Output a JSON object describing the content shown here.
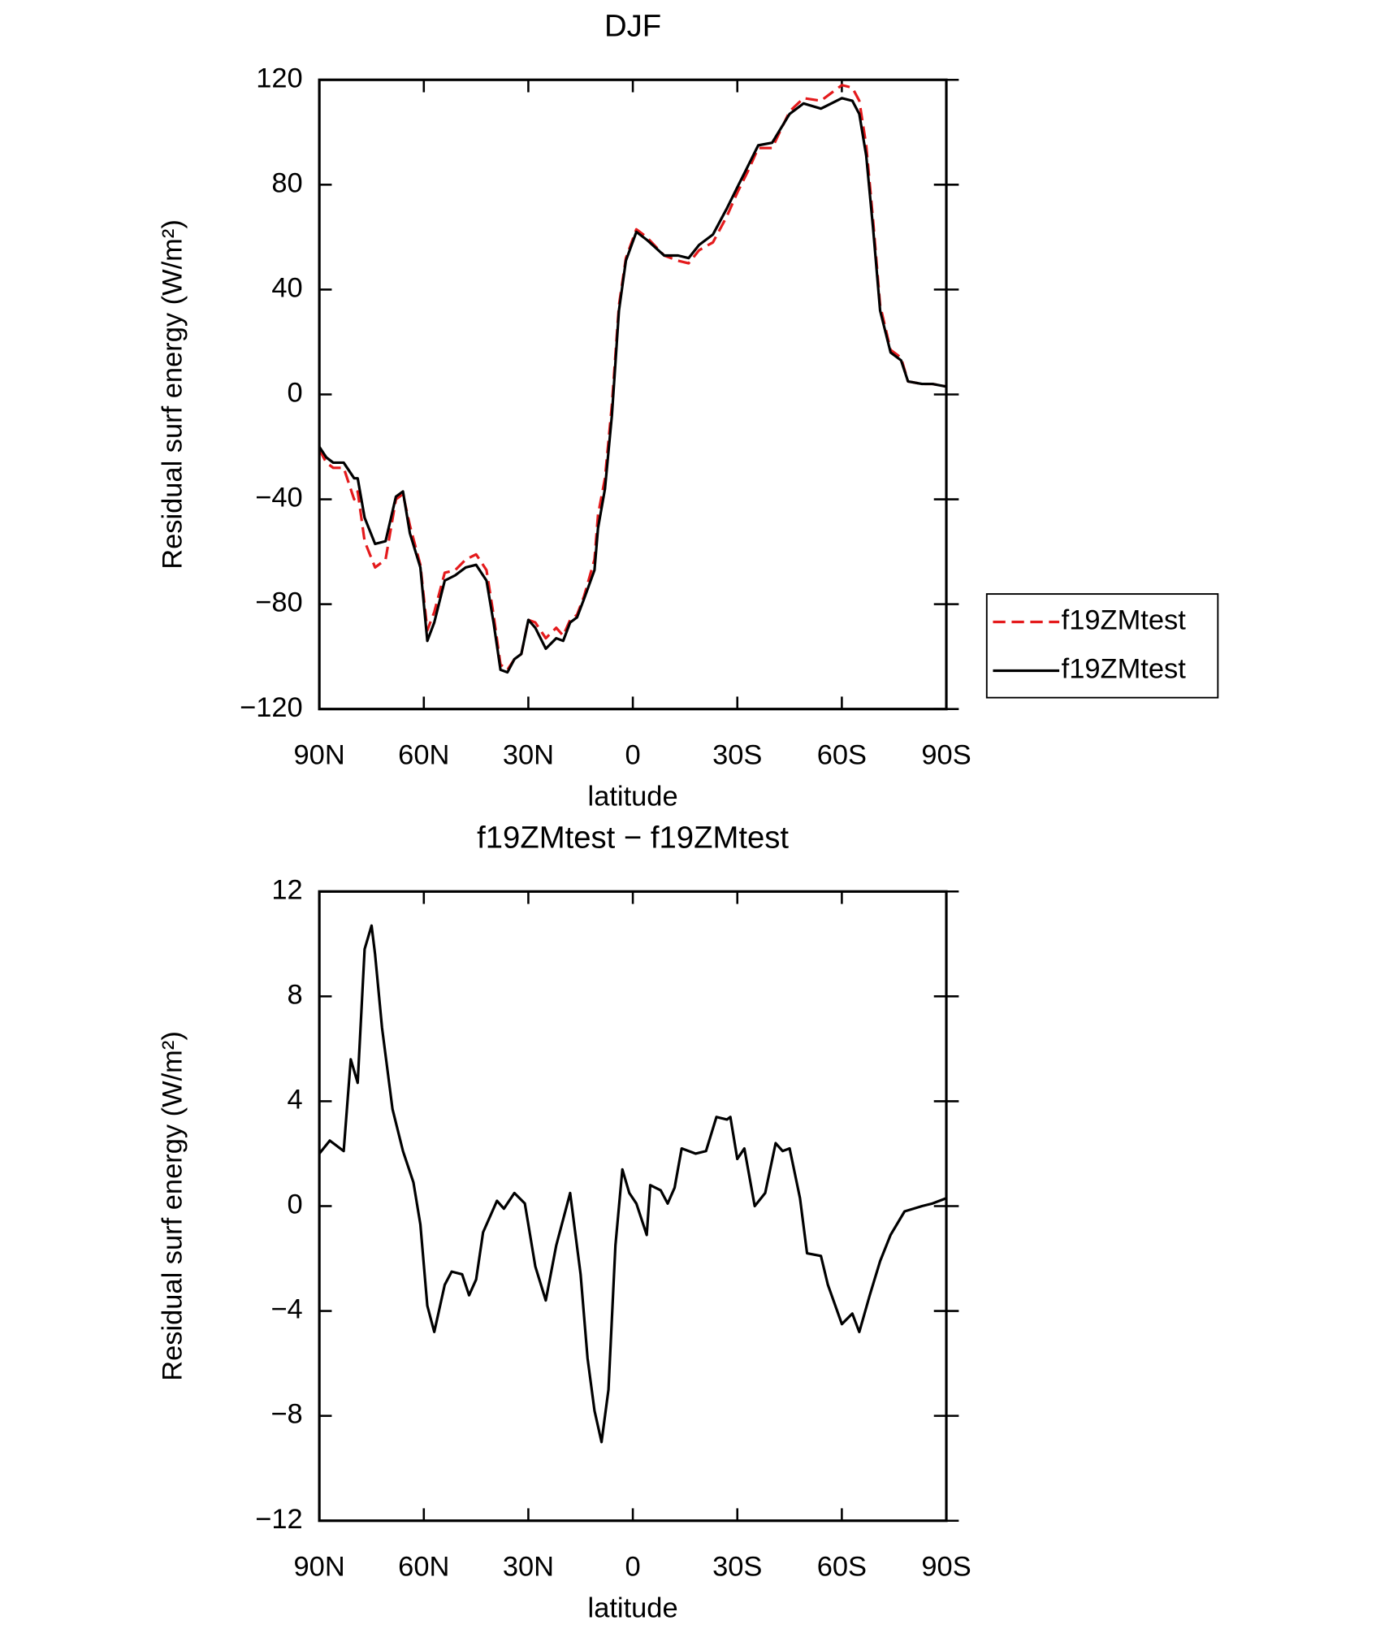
{
  "chart_data": [
    {
      "type": "line",
      "title": "DJF",
      "x_label": "latitude",
      "y_label": "Residual surf energy (W/m²)",
      "x": [
        90,
        88,
        86,
        83,
        80,
        79,
        77,
        74,
        71,
        68,
        66,
        64,
        61,
        59,
        57,
        54,
        51,
        48,
        45,
        42,
        40,
        38,
        36,
        34,
        32,
        30,
        28,
        25,
        22,
        20,
        18,
        16,
        14,
        11,
        10,
        8,
        6,
        4,
        2,
        -1,
        -4,
        -9,
        -13,
        -16,
        -19,
        -23,
        -27,
        -30,
        -33,
        -36,
        -40,
        -45,
        -49,
        -54,
        -60,
        -63,
        -65,
        -67,
        -69,
        -71,
        -74,
        -77,
        -79,
        -83,
        -86,
        -90
      ],
      "series": [
        {
          "name": "f19ZMtest",
          "color": "#e41a1c",
          "dash": true,
          "values": [
            -21,
            -26,
            -28,
            -28,
            -40,
            -37,
            -56,
            -66,
            -63,
            -40,
            -38,
            -50,
            -65,
            -90,
            -83,
            -68,
            -67,
            -63,
            -61,
            -67,
            -84,
            -103,
            -105,
            -101,
            -99,
            -86,
            -87,
            -93,
            -89,
            -92,
            -86,
            -84,
            -77,
            -63,
            -46,
            -32,
            -4,
            34,
            52,
            63,
            60,
            53,
            51,
            50,
            55,
            58,
            68,
            77,
            85,
            94,
            94,
            108,
            113,
            112,
            118,
            117,
            112,
            95,
            66,
            34,
            17,
            14,
            5,
            4,
            4,
            3
          ]
        },
        {
          "name": "f19ZMtest",
          "color": "#000000",
          "dash": false,
          "values": [
            -20,
            -24,
            -26,
            -26,
            -32,
            -32,
            -47,
            -57,
            -56,
            -39,
            -37,
            -53,
            -66,
            -94,
            -87,
            -71,
            -69,
            -66,
            -65,
            -71,
            -87,
            -105,
            -106,
            -101,
            -99,
            -86,
            -89,
            -97,
            -93,
            -94,
            -87,
            -85,
            -78,
            -67,
            -51,
            -36,
            -8,
            32,
            51,
            62,
            59,
            53,
            53,
            52,
            57,
            61,
            71,
            79,
            87,
            95,
            96,
            107,
            111,
            109,
            113,
            112,
            107,
            91,
            63,
            32,
            16,
            13,
            5,
            4,
            4,
            3
          ]
        }
      ],
      "xlim": [
        90,
        -90
      ],
      "ylim": [
        -120,
        120
      ],
      "xticks": [
        {
          "value": 90,
          "label": "90N"
        },
        {
          "value": 60,
          "label": "60N"
        },
        {
          "value": 30,
          "label": "30N"
        },
        0,
        {
          "value": -30,
          "label": "30S"
        },
        {
          "value": -60,
          "label": "60S"
        },
        {
          "value": -90,
          "label": "90S"
        }
      ],
      "yticks": [
        {
          "value": -120,
          "label": "−120"
        },
        {
          "value": -80,
          "label": "−80"
        },
        {
          "value": -40,
          "label": "−40"
        },
        0,
        40,
        80,
        120
      ],
      "legend": "right"
    },
    {
      "type": "line",
      "title": "f19ZMtest − f19ZMtest",
      "x_label": "latitude",
      "y_label": "Residual surf energy (W/m²)",
      "x": [
        90,
        87,
        83,
        81,
        79,
        77,
        75,
        74,
        72,
        69,
        66,
        63,
        61,
        59,
        57,
        54,
        52,
        49,
        47,
        45,
        43,
        39,
        37,
        34,
        31,
        28,
        25,
        22,
        18,
        15,
        13,
        11,
        9,
        7,
        5,
        3,
        1,
        -1,
        -4,
        -5,
        -8,
        -10,
        -12,
        -14,
        -18,
        -21,
        -24,
        -27,
        -28,
        -30,
        -32,
        -35,
        -38,
        -41,
        -43,
        -45,
        -48,
        -50,
        -54,
        -56,
        -60,
        -63,
        -65,
        -68,
        -71,
        -74,
        -78,
        -83,
        -86,
        -90
      ],
      "series": [
        {
          "name": "f19ZMtest − f19ZMtest",
          "color": "#000000",
          "dash": false,
          "values": [
            2.0,
            2.5,
            2.1,
            5.6,
            4.7,
            9.8,
            10.7,
            9.6,
            6.8,
            3.7,
            2.1,
            0.9,
            -0.7,
            -3.8,
            -4.8,
            -3.0,
            -2.5,
            -2.6,
            -3.4,
            -2.8,
            -1.0,
            0.2,
            -0.1,
            0.5,
            0.1,
            -2.3,
            -3.6,
            -1.5,
            0.5,
            -2.6,
            -5.8,
            -7.8,
            -9.0,
            -7.0,
            -1.5,
            1.4,
            0.5,
            0.1,
            -1.1,
            0.8,
            0.6,
            0.1,
            0.7,
            2.2,
            2.0,
            2.1,
            3.4,
            3.3,
            3.4,
            1.8,
            2.2,
            0,
            0.5,
            2.4,
            2.1,
            2.2,
            0.3,
            -1.8,
            -1.9,
            -3.0,
            -4.5,
            -4.1,
            -4.8,
            -3.4,
            -2.1,
            -1.1,
            -0.2,
            0,
            0.1,
            0.3
          ]
        }
      ],
      "xlim": [
        90,
        -90
      ],
      "ylim": [
        -12,
        12
      ],
      "xticks": [
        {
          "value": 90,
          "label": "90N"
        },
        {
          "value": 60,
          "label": "60N"
        },
        {
          "value": 30,
          "label": "30N"
        },
        0,
        {
          "value": -30,
          "label": "30S"
        },
        {
          "value": -60,
          "label": "60S"
        },
        {
          "value": -90,
          "label": "90S"
        }
      ],
      "yticks": [
        {
          "value": -12,
          "label": "−12"
        },
        {
          "value": -8,
          "label": "−8"
        },
        {
          "value": -4,
          "label": "−4"
        },
        0,
        4,
        8,
        12
      ]
    }
  ]
}
